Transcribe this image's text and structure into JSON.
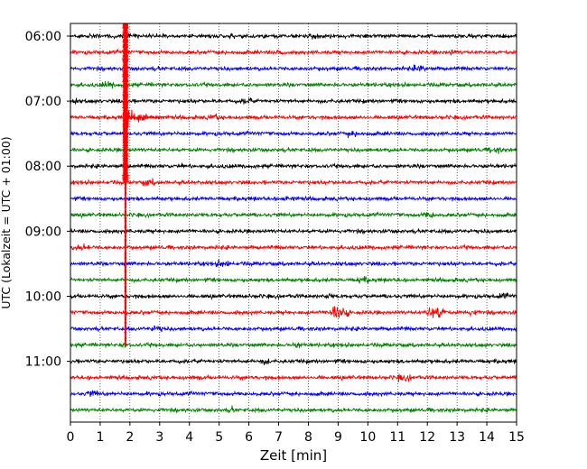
{
  "chart_data": {
    "type": "line",
    "title": "",
    "xlabel": "Zeit  [min]",
    "ylabel": "UTC (Lokalzeit = UTC + 01:00)",
    "xlim": [
      0,
      15
    ],
    "x_ticks": [
      0,
      1,
      2,
      3,
      4,
      5,
      6,
      7,
      8,
      9,
      10,
      11,
      12,
      13,
      14,
      15
    ],
    "y_tick_labels": [
      "06:00",
      "07:00",
      "08:00",
      "09:00",
      "10:00",
      "11:00"
    ],
    "trace_colors": [
      "#000000",
      "#ff0000",
      "#0000ff",
      "#008000"
    ],
    "trace_count": 24,
    "first_trace_time": "06:00",
    "trace_interval_min": 15,
    "grid": "vertical dotted at each minute",
    "events": [
      {
        "trace_index": 0,
        "start_min": 1.85,
        "note": "strong saturated arrival continuing through following traces"
      },
      {
        "trace_index": 17,
        "minute": 9.0,
        "note": "local burst"
      },
      {
        "trace_index": 17,
        "minute": 12.3,
        "note": "local burst"
      }
    ]
  }
}
